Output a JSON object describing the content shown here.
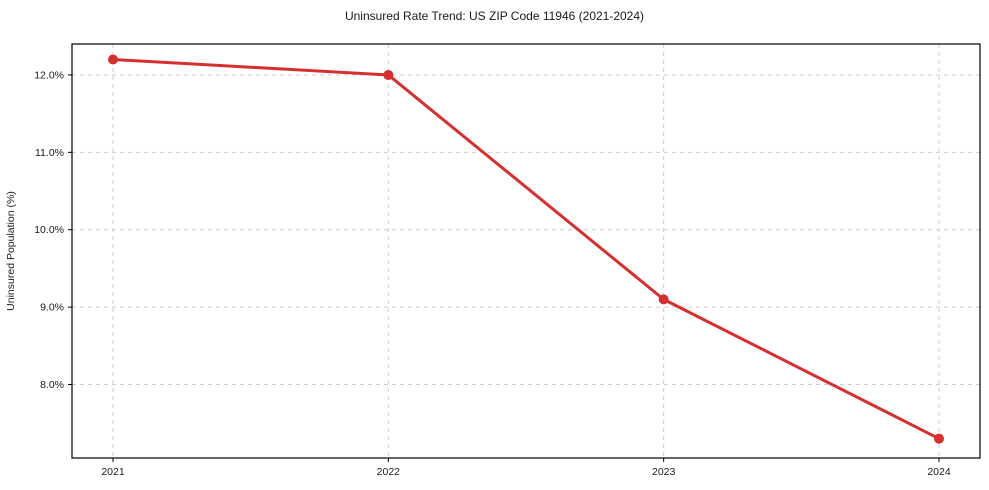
{
  "chart_data": {
    "type": "line",
    "title": "Uninsured Rate Trend: US ZIP Code 11946 (2021-2024)",
    "xlabel": "",
    "ylabel": "Uninsured Population (%)",
    "categories": [
      "2021",
      "2022",
      "2023",
      "2024"
    ],
    "series": [
      {
        "name": "Uninsured rate",
        "values": [
          12.2,
          12.0,
          9.1,
          7.3
        ],
        "color": "#d62f2f"
      }
    ],
    "yticks": [
      {
        "value": 8.0,
        "label": "8.0%"
      },
      {
        "value": 9.0,
        "label": "9.0%"
      },
      {
        "value": 10.0,
        "label": "10.0%"
      },
      {
        "value": 11.0,
        "label": "11.0%"
      },
      {
        "value": 12.0,
        "label": "12.0%"
      }
    ],
    "ylim": [
      7.05,
      12.4
    ],
    "grid": "dashed",
    "legend": "none",
    "colors": {
      "line": "#d62f2f",
      "marker": "#d62f2f",
      "grid": "#cccccc",
      "spine": "#000000",
      "text": "#1a1a1a",
      "background": "#ffffff"
    }
  }
}
